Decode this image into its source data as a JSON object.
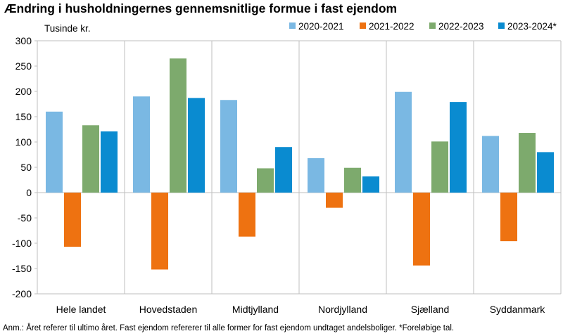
{
  "chart_data": {
    "type": "bar",
    "title": "Ændring i husholdningernes gennemsnitlige formue i fast ejendom",
    "ylabel": "Tusinde kr.",
    "xlabel": "",
    "categories": [
      "Hele landet",
      "Hovedstaden",
      "Midtjylland",
      "Nordjylland",
      "Sjælland",
      "Syddanmark"
    ],
    "series": [
      {
        "name": "2020-2021",
        "color": "#7ab8e3",
        "values": [
          160,
          190,
          183,
          68,
          199,
          112
        ]
      },
      {
        "name": "2021-2022",
        "color": "#ee7211",
        "values": [
          -107,
          -152,
          -87,
          -30,
          -144,
          -96
        ]
      },
      {
        "name": "2022-2023",
        "color": "#7daa6d",
        "values": [
          133,
          265,
          48,
          49,
          101,
          118
        ]
      },
      {
        "name": "2023-2024*",
        "color": "#0a8bd0",
        "values": [
          121,
          187,
          90,
          32,
          179,
          80
        ]
      }
    ],
    "ylim": [
      -200,
      300
    ],
    "yticks": [
      300,
      250,
      200,
      150,
      100,
      50,
      0,
      -50,
      -100,
      -150,
      -200
    ],
    "grid": false,
    "legend": "top-right",
    "note": "Anm.: Året referer til ultimo året. Fast ejendom refererer til alle former for fast ejendom undtaget andelsboliger. *Foreløbige tal."
  }
}
